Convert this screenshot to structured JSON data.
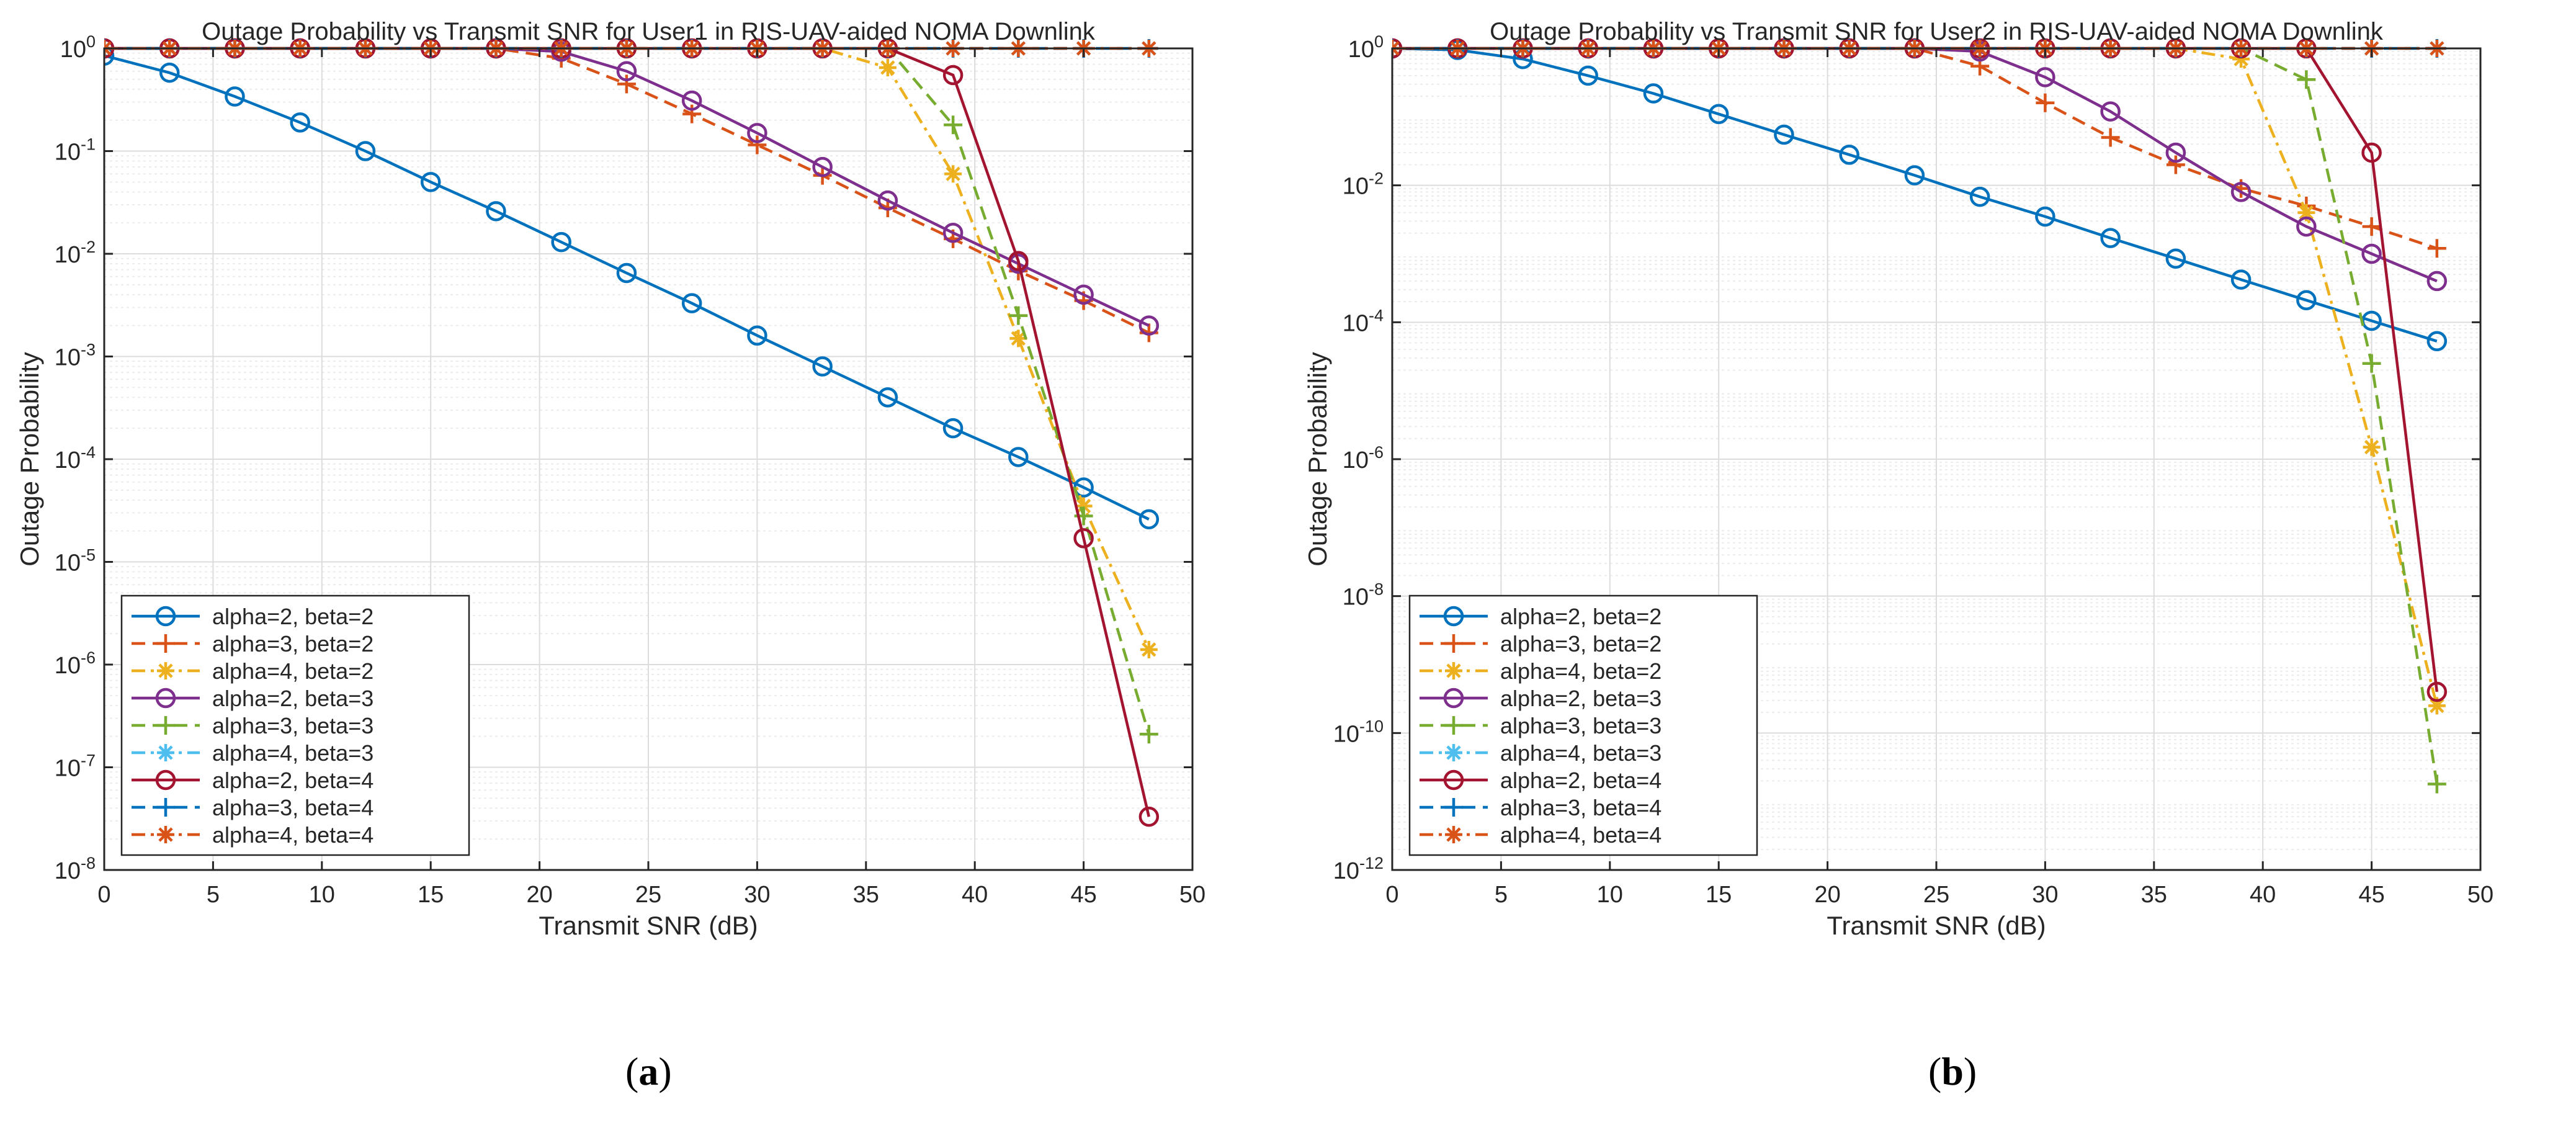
{
  "panel_labels": {
    "a": {
      "open": "(",
      "letter": "a",
      "close": ")"
    },
    "b": {
      "open": "(",
      "letter": "b",
      "close": ")"
    }
  },
  "chart_data": [
    {
      "id": "a",
      "type": "line",
      "yscale": "log",
      "title": "Outage Probability vs Transmit SNR for User1 in RIS-UAV-aided NOMA Downlink",
      "xlabel": "Transmit SNR (dB)",
      "ylabel": "Outage Probability",
      "xlim": [
        0,
        50
      ],
      "ylim_exp": [
        -8,
        0
      ],
      "xticks": [
        0,
        5,
        10,
        15,
        20,
        25,
        30,
        35,
        40,
        45,
        50
      ],
      "yticks_exp": [
        -8,
        -7,
        -6,
        -5,
        -4,
        -3,
        -2,
        -1,
        0
      ],
      "grid": true,
      "legend_position": "bottom-left",
      "x": [
        0,
        3,
        6,
        9,
        12,
        15,
        18,
        21,
        24,
        27,
        30,
        33,
        36,
        39,
        42,
        45,
        48
      ],
      "series": [
        {
          "name": "alpha=2, beta=2",
          "color": "#0072BD",
          "dash": "solid",
          "marker": "circle",
          "values": [
            0.85,
            0.58,
            0.34,
            0.19,
            0.1,
            0.05,
            0.026,
            0.013,
            0.0065,
            0.0033,
            0.0016,
            0.0008,
            0.0004,
            0.0002,
            0.000105,
            5.3e-05,
            2.6e-05
          ]
        },
        {
          "name": "alpha=3, beta=2",
          "color": "#D95319",
          "dash": "dash",
          "marker": "plus",
          "values": [
            1,
            1,
            1,
            1,
            1,
            1,
            1,
            0.8,
            0.45,
            0.23,
            0.115,
            0.058,
            0.028,
            0.014,
            0.0068,
            0.0035,
            0.0017
          ]
        },
        {
          "name": "alpha=4, beta=2",
          "color": "#EDB120",
          "dash": "dashdot",
          "marker": "star",
          "values": [
            1,
            1,
            1,
            1,
            1,
            1,
            1,
            1,
            1,
            1,
            1,
            1,
            0.65,
            0.06,
            0.0015,
            3.5e-05,
            1.4e-06
          ]
        },
        {
          "name": "alpha=2, beta=3",
          "color": "#7E2F8E",
          "dash": "solid",
          "marker": "circle",
          "values": [
            1,
            1,
            1,
            1,
            1,
            1,
            1,
            0.93,
            0.6,
            0.31,
            0.15,
            0.07,
            0.033,
            0.016,
            0.008,
            0.004,
            0.002
          ]
        },
        {
          "name": "alpha=3, beta=3",
          "color": "#77AC30",
          "dash": "dash",
          "marker": "plus",
          "values": [
            1,
            1,
            1,
            1,
            1,
            1,
            1,
            1,
            1,
            1,
            1,
            1,
            1,
            0.18,
            0.0025,
            2.8e-05,
            2.1e-07
          ]
        },
        {
          "name": "alpha=4, beta=3",
          "color": "#4DBEEE",
          "dash": "dashdot",
          "marker": "star",
          "values": [
            1,
            1,
            1,
            1,
            1,
            1,
            1,
            1,
            1,
            1,
            1,
            1,
            1,
            1,
            1,
            1,
            1
          ]
        },
        {
          "name": "alpha=2, beta=4",
          "color": "#A2142F",
          "dash": "solid",
          "marker": "circle",
          "values": [
            1,
            1,
            1,
            1,
            1,
            1,
            1,
            1,
            1,
            1,
            1,
            1,
            1,
            0.55,
            0.0085,
            1.7e-05,
            3.3e-08
          ]
        },
        {
          "name": "alpha=3, beta=4",
          "color": "#0072BD",
          "dash": "dash",
          "marker": "plus",
          "values": [
            1,
            1,
            1,
            1,
            1,
            1,
            1,
            1,
            1,
            1,
            1,
            1,
            1,
            1,
            1,
            1,
            1
          ]
        },
        {
          "name": "alpha=4, beta=4",
          "color": "#D95319",
          "dash": "dashdot",
          "marker": "star",
          "values": [
            1,
            1,
            1,
            1,
            1,
            1,
            1,
            1,
            1,
            1,
            1,
            1,
            1,
            1,
            1,
            1,
            1
          ]
        }
      ]
    },
    {
      "id": "b",
      "type": "line",
      "yscale": "log",
      "title": "Outage Probability vs Transmit SNR for User2 in RIS-UAV-aided NOMA Downlink",
      "xlabel": "Transmit SNR (dB)",
      "ylabel": "Outage Probability",
      "xlim": [
        0,
        50
      ],
      "ylim_exp": [
        -12,
        0
      ],
      "xticks": [
        0,
        5,
        10,
        15,
        20,
        25,
        30,
        35,
        40,
        45,
        50
      ],
      "yticks_exp": [
        -12,
        -10,
        -8,
        -6,
        -4,
        -2,
        0
      ],
      "grid": true,
      "legend_position": "bottom-left",
      "x": [
        0,
        3,
        6,
        9,
        12,
        15,
        18,
        21,
        24,
        27,
        30,
        33,
        36,
        39,
        42,
        45,
        48
      ],
      "series": [
        {
          "name": "alpha=2, beta=2",
          "color": "#0072BD",
          "dash": "solid",
          "marker": "circle",
          "values": [
            1,
            0.95,
            0.7,
            0.4,
            0.22,
            0.11,
            0.055,
            0.028,
            0.014,
            0.0068,
            0.0035,
            0.0017,
            0.00085,
            0.00042,
            0.00021,
            0.000105,
            5.3e-05
          ]
        },
        {
          "name": "alpha=3, beta=2",
          "color": "#D95319",
          "dash": "dash",
          "marker": "plus",
          "values": [
            1,
            1,
            1,
            1,
            1,
            1,
            1,
            1,
            1,
            0.55,
            0.16,
            0.05,
            0.02,
            0.009,
            0.005,
            0.0025,
            0.0012
          ]
        },
        {
          "name": "alpha=4, beta=2",
          "color": "#EDB120",
          "dash": "dashdot",
          "marker": "star",
          "values": [
            1,
            1,
            1,
            1,
            1,
            1,
            1,
            1,
            1,
            1,
            1,
            1,
            1,
            0.7,
            0.004,
            1.5e-06,
            2.5e-10
          ]
        },
        {
          "name": "alpha=2, beta=3",
          "color": "#7E2F8E",
          "dash": "solid",
          "marker": "circle",
          "values": [
            1,
            1,
            1,
            1,
            1,
            1,
            1,
            1,
            1,
            0.9,
            0.38,
            0.12,
            0.03,
            0.008,
            0.0025,
            0.001,
            0.0004
          ]
        },
        {
          "name": "alpha=3, beta=3",
          "color": "#77AC30",
          "dash": "dash",
          "marker": "plus",
          "values": [
            1,
            1,
            1,
            1,
            1,
            1,
            1,
            1,
            1,
            1,
            1,
            1,
            1,
            1,
            0.35,
            2.5e-05,
            1.8e-11
          ]
        },
        {
          "name": "alpha=4, beta=3",
          "color": "#4DBEEE",
          "dash": "dashdot",
          "marker": "star",
          "values": [
            1,
            1,
            1,
            1,
            1,
            1,
            1,
            1,
            1,
            1,
            1,
            1,
            1,
            1,
            1,
            1,
            1
          ]
        },
        {
          "name": "alpha=2, beta=4",
          "color": "#A2142F",
          "dash": "solid",
          "marker": "circle",
          "values": [
            1,
            1,
            1,
            1,
            1,
            1,
            1,
            1,
            1,
            1,
            1,
            1,
            1,
            1,
            1,
            0.03,
            4e-10
          ]
        },
        {
          "name": "alpha=3, beta=4",
          "color": "#0072BD",
          "dash": "dash",
          "marker": "plus",
          "values": [
            1,
            1,
            1,
            1,
            1,
            1,
            1,
            1,
            1,
            1,
            1,
            1,
            1,
            1,
            1,
            1,
            1
          ]
        },
        {
          "name": "alpha=4, beta=4",
          "color": "#D95319",
          "dash": "dashdot",
          "marker": "star",
          "values": [
            1,
            1,
            1,
            1,
            1,
            1,
            1,
            1,
            1,
            1,
            1,
            1,
            1,
            1,
            1,
            1,
            1
          ]
        }
      ]
    }
  ]
}
